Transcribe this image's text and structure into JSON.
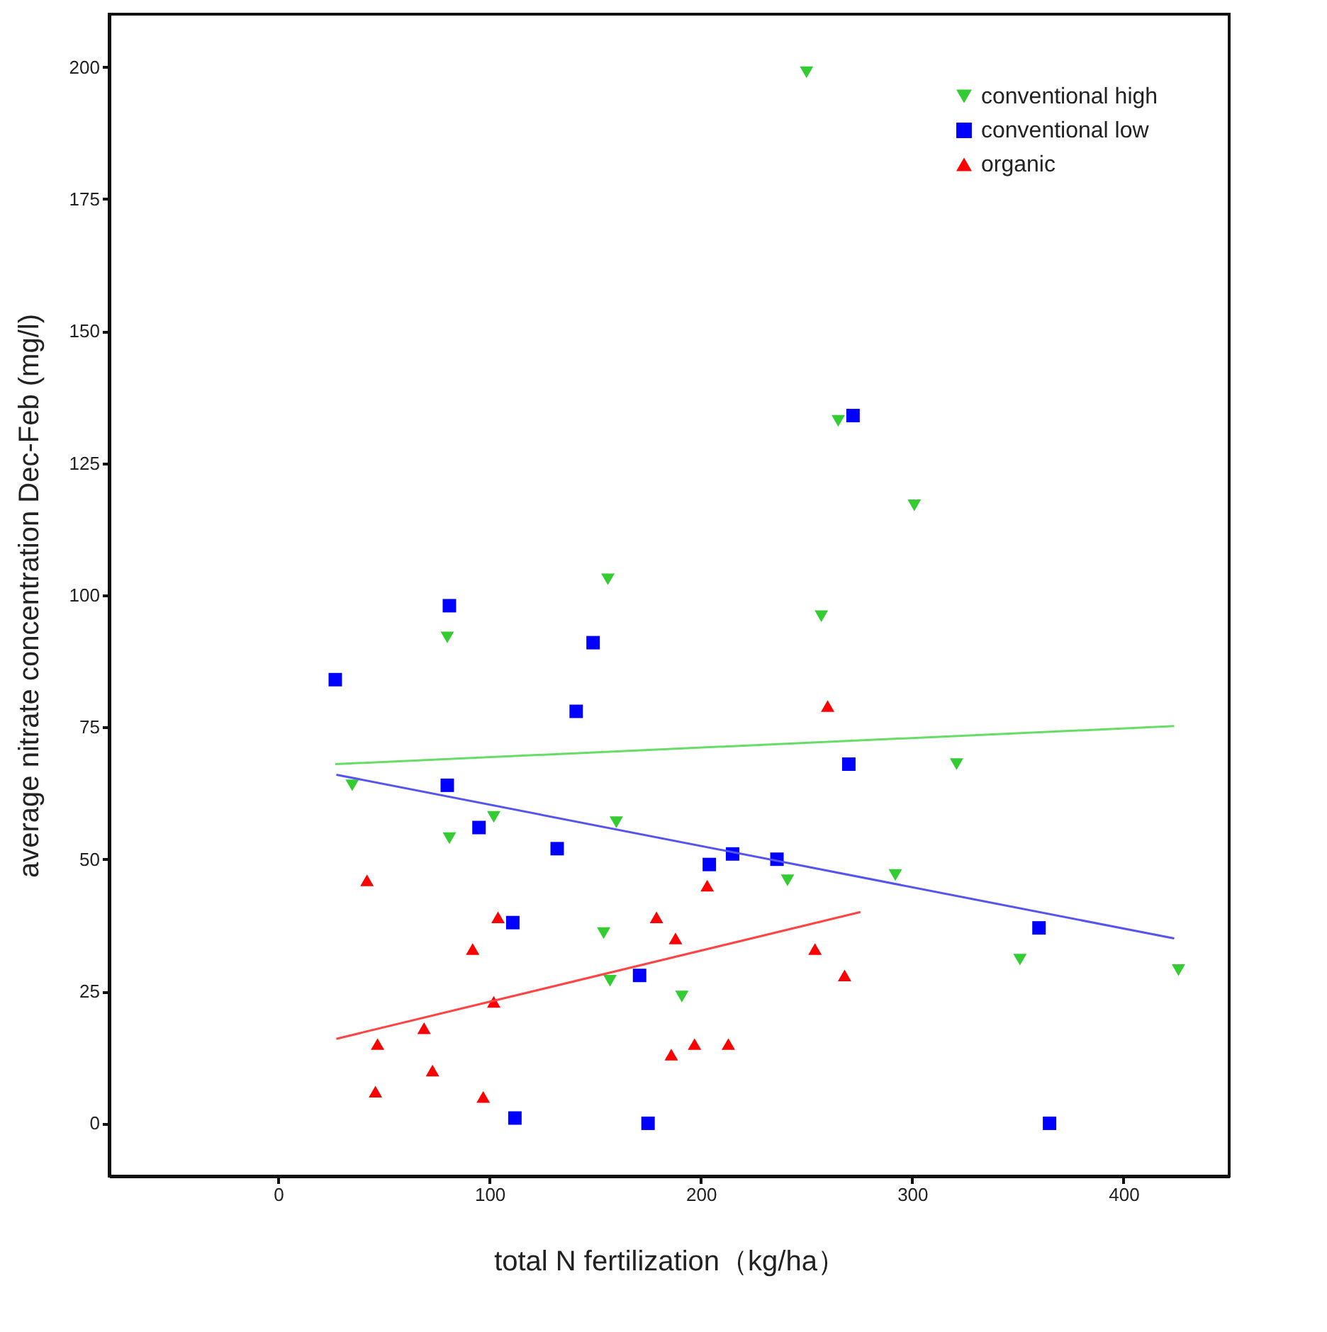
{
  "chart_data": {
    "type": "scatter",
    "xlabel": "total N fertilization（kg/ha）",
    "ylabel": "average nitrate concentration Dec-Feb (mg/l)",
    "xlim": [
      -80,
      450
    ],
    "xticks": [
      0,
      100,
      200,
      300,
      400
    ],
    "ylim": [
      -10,
      210
    ],
    "yticks": [
      0,
      25,
      50,
      75,
      100,
      125,
      150,
      175,
      200
    ],
    "grid": false,
    "legend": "top right",
    "series": [
      {
        "name": "conventional high",
        "color": "#33cc33",
        "marker": "triangle-down",
        "x": [
          250,
          265,
          301,
          156,
          257,
          80,
          35,
          321,
          81,
          102,
          160,
          292,
          241,
          154,
          157,
          191,
          351,
          426
        ],
        "values": [
          199,
          133,
          117,
          103,
          96,
          92,
          64,
          68,
          54,
          58,
          57,
          47,
          46,
          36,
          27,
          24,
          31,
          29
        ]
      },
      {
        "name": "conventional low",
        "color": "#0000ff",
        "marker": "square",
        "x": [
          272,
          81,
          149,
          27,
          141,
          270,
          80,
          95,
          132,
          204,
          215,
          236,
          111,
          171,
          360,
          112,
          175,
          365
        ],
        "values": [
          134,
          98,
          91,
          84,
          78,
          68,
          64,
          56,
          52,
          49,
          51,
          50,
          38,
          28,
          37,
          1,
          0,
          0
        ]
      },
      {
        "name": "organic",
        "color": "#ff0000",
        "marker": "triangle",
        "x": [
          260,
          42,
          104,
          179,
          92,
          203,
          188,
          254,
          268,
          102,
          69,
          47,
          73,
          46,
          97,
          186,
          197,
          213
        ],
        "values": [
          79,
          46,
          39,
          39,
          33,
          45,
          35,
          33,
          28,
          23,
          18,
          15,
          10,
          6,
          5,
          13,
          15,
          15
        ]
      },
      {
        "type": "line",
        "color": "#66dd66",
        "x": [
          27,
          424
        ],
        "values": [
          68,
          75.2
        ]
      },
      {
        "type": "line",
        "color": "#5555ee",
        "x": [
          27.5,
          424
        ],
        "values": [
          66,
          35
        ]
      },
      {
        "type": "line",
        "color": "#ff4444",
        "x": [
          27.5,
          275.5
        ],
        "values": [
          16,
          40
        ]
      }
    ]
  }
}
